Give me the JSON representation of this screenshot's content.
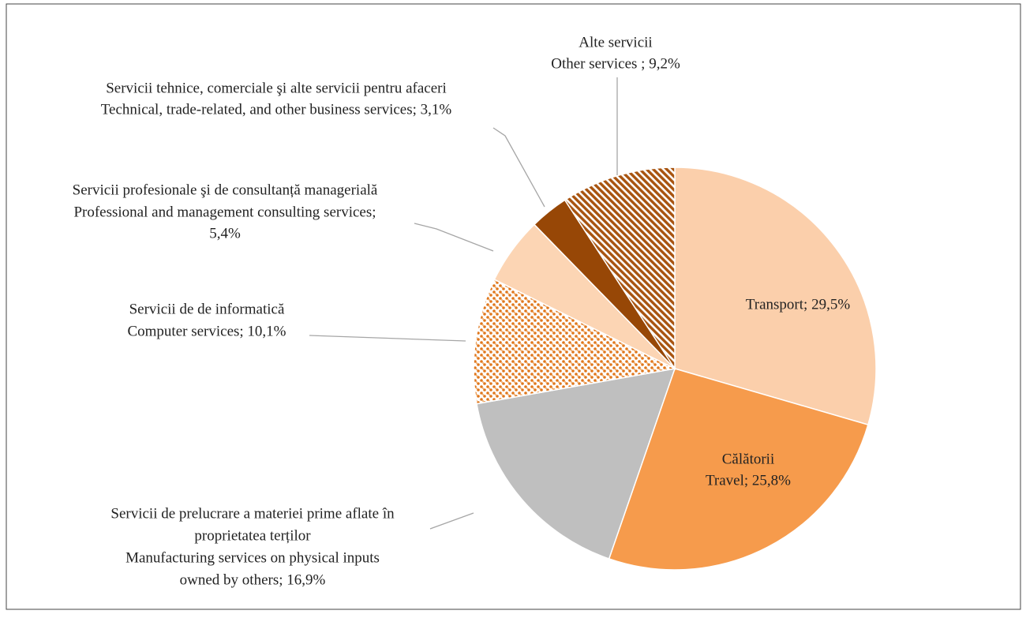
{
  "chart_data": {
    "type": "pie",
    "categories": [
      [
        "Transport; 29,5%"
      ],
      [
        "Călătorii",
        "Travel; 25,8%"
      ],
      [
        "Servicii de prelucrare a materiei prime aflate în",
        "proprietatea terților",
        "Manufacturing services on physical inputs",
        "owned by others; 16,9%"
      ],
      [
        "Servicii de  de informatică",
        "Computer services; 10,1%"
      ],
      [
        "Servicii profesionale şi de consultanță managerială",
        "Professional and management consulting services;",
        "5,4%"
      ],
      [
        "Servicii tehnice, comerciale şi alte servicii pentru afaceri",
        "Technical, trade-related, and other business services; 3,1%"
      ],
      [
        "Alte servicii",
        "Other services ; 9,2%"
      ]
    ],
    "values": [
      29.5,
      25.8,
      16.9,
      10.1,
      5.4,
      3.1,
      9.2
    ],
    "colors": [
      "#fbcfab",
      "#f69b4c",
      "#bfbfbf",
      "#e0771c",
      "#fcd5b4",
      "#974706",
      "#a85410"
    ],
    "patterns": [
      null,
      null,
      null,
      "dots",
      null,
      null,
      "stripes"
    ],
    "start_angle": 0,
    "direction": "clockwise"
  }
}
